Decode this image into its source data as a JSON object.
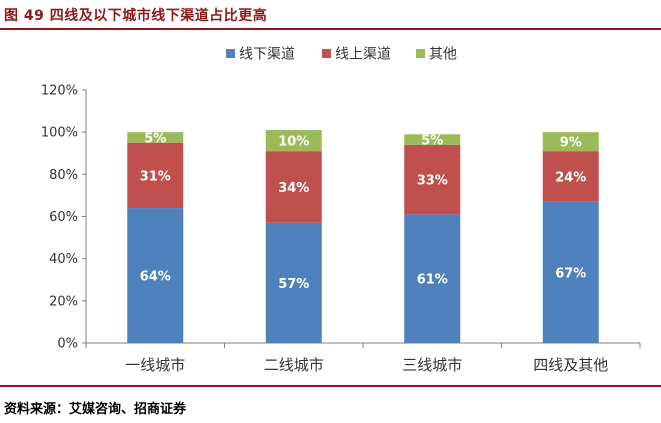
{
  "header": {
    "figure_title": "图 49 四线及以下城市线下渠道占比更高"
  },
  "footer": {
    "source": "资料来源：艾媒咨询、招商证券"
  },
  "chart_data": {
    "type": "bar",
    "stacked": true,
    "categories": [
      "一线城市",
      "二线城市",
      "三线城市",
      "四线及其他"
    ],
    "series": [
      {
        "name": "线下渠道",
        "values": [
          64,
          57,
          61,
          67
        ],
        "labels": [
          "64%",
          "57%",
          "61%",
          "67%"
        ],
        "color": "#4f81bd"
      },
      {
        "name": "线上渠道",
        "values": [
          31,
          34,
          33,
          24
        ],
        "labels": [
          "31%",
          "34%",
          "33%",
          "24%"
        ],
        "color": "#c0504d"
      },
      {
        "name": "其他",
        "values": [
          5,
          10,
          5,
          9
        ],
        "labels": [
          "5%",
          "10%",
          "5%",
          "9%"
        ],
        "color": "#9bbb59"
      }
    ],
    "yticks": [
      "0%",
      "20%",
      "40%",
      "60%",
      "80%",
      "100%",
      "120%"
    ],
    "ylim": [
      0,
      120
    ],
    "legend": "top-center",
    "grid": false
  }
}
